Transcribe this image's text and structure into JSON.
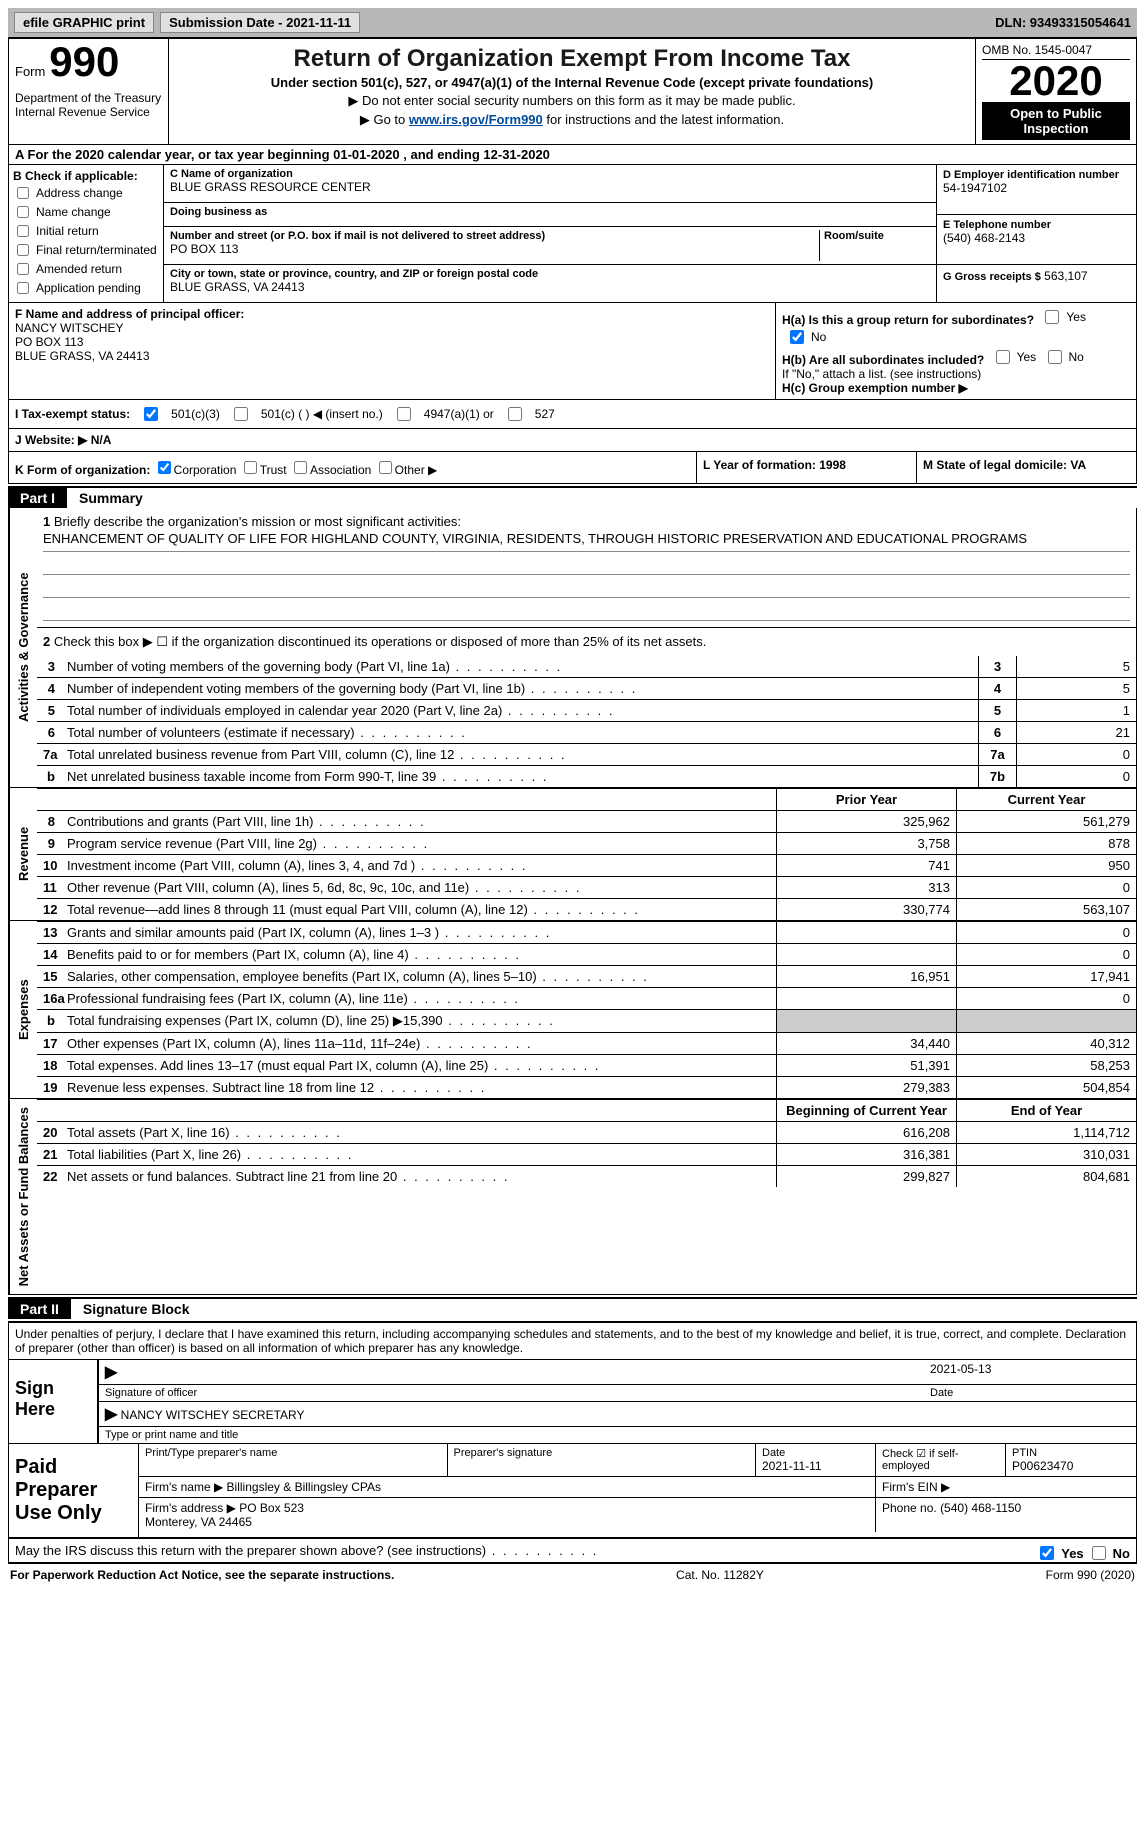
{
  "top": {
    "efile": "efile GRAPHIC print",
    "sub_label": "Submission Date - 2021-11-11",
    "dln": "DLN: 93493315054641"
  },
  "header": {
    "form_word": "Form",
    "form_num": "990",
    "dept": "Department of the Treasury\nInternal Revenue Service",
    "title": "Return of Organization Exempt From Income Tax",
    "subtitle": "Under section 501(c), 527, or 4947(a)(1) of the Internal Revenue Code (except private foundations)",
    "note1": "▶ Do not enter social security numbers on this form as it may be made public.",
    "note2_pre": "▶ Go to ",
    "note2_link": "www.irs.gov/Form990",
    "note2_post": " for instructions and the latest information.",
    "omb": "OMB No. 1545-0047",
    "year": "2020",
    "open": "Open to Public Inspection"
  },
  "rowA": "A For the 2020 calendar year, or tax year beginning 01-01-2020   , and ending 12-31-2020",
  "colB": {
    "hd": "B Check if applicable:",
    "o1": "Address change",
    "o2": "Name change",
    "o3": "Initial return",
    "o4": "Final return/terminated",
    "o5": "Amended return",
    "o6": "Application pending"
  },
  "colC": {
    "name_lbl": "C Name of organization",
    "name": "BLUE GRASS RESOURCE CENTER",
    "dba_lbl": "Doing business as",
    "dba": "",
    "addr_lbl": "Number and street (or P.O. box if mail is not delivered to street address)",
    "addr": "PO BOX 113",
    "room_lbl": "Room/suite",
    "room": "",
    "city_lbl": "City or town, state or province, country, and ZIP or foreign postal code",
    "city": "BLUE GRASS, VA  24413"
  },
  "colD": {
    "ein_lbl": "D Employer identification number",
    "ein": "54-1947102",
    "tel_lbl": "E Telephone number",
    "tel": "(540) 468-2143",
    "gross_lbl": "G Gross receipts $",
    "gross": "563,107"
  },
  "rowF": {
    "lbl": "F Name and address of principal officer:",
    "name": "NANCY WITSCHEY",
    "addr1": "PO BOX 113",
    "addr2": "BLUE GRASS, VA  24413"
  },
  "rowH": {
    "ha": "H(a)  Is this a group return for subordinates?",
    "hb": "H(b)  Are all subordinates included?",
    "hb_instr": "If \"No,\" attach a list. (see instructions)",
    "hc": "H(c)  Group exemption number ▶",
    "yes": "Yes",
    "no": "No"
  },
  "rowI": {
    "lbl": "I  Tax-exempt status:",
    "o1": "501(c)(3)",
    "o2": "501(c) (   ) ◀ (insert no.)",
    "o3": "4947(a)(1) or",
    "o4": "527"
  },
  "rowJ": "J  Website: ▶  N/A",
  "rowK": {
    "lbl": "K Form of organization:",
    "o1": "Corporation",
    "o2": "Trust",
    "o3": "Association",
    "o4": "Other ▶"
  },
  "rowL": "L Year of formation: 1998",
  "rowM": "M State of legal domicile: VA",
  "partI": {
    "badge": "Part I",
    "title": "Summary"
  },
  "summary": {
    "q1_lbl": "Briefly describe the organization's mission or most significant activities:",
    "q1_val": "ENHANCEMENT OF QUALITY OF LIFE FOR HIGHLAND COUNTY, VIRGINIA, RESIDENTS, THROUGH HISTORIC PRESERVATION AND EDUCATIONAL PROGRAMS",
    "q2": "Check this box ▶ ☐  if the organization discontinued its operations or disposed of more than 25% of its net assets.",
    "vlabel_ag": "Activities & Governance",
    "l3": "Number of voting members of the governing body (Part VI, line 1a)",
    "l3v": "5",
    "l4": "Number of independent voting members of the governing body (Part VI, line 1b)",
    "l4v": "5",
    "l5": "Total number of individuals employed in calendar year 2020 (Part V, line 2a)",
    "l5v": "1",
    "l6": "Total number of volunteers (estimate if necessary)",
    "l6v": "21",
    "l7a": "Total unrelated business revenue from Part VIII, column (C), line 12",
    "l7av": "0",
    "l7b": "Net unrelated business taxable income from Form 990-T, line 39",
    "l7bv": "0"
  },
  "fin": {
    "prior_hdr": "Prior Year",
    "curr_hdr": "Current Year",
    "boc_hdr": "Beginning of Current Year",
    "eoy_hdr": "End of Year",
    "vlabel_rev": "Revenue",
    "vlabel_exp": "Expenses",
    "vlabel_nafb": "Net Assets or Fund Balances",
    "rows": [
      {
        "n": "8",
        "t": "Contributions and grants (Part VIII, line 1h)",
        "p": "325,962",
        "c": "561,279"
      },
      {
        "n": "9",
        "t": "Program service revenue (Part VIII, line 2g)",
        "p": "3,758",
        "c": "878"
      },
      {
        "n": "10",
        "t": "Investment income (Part VIII, column (A), lines 3, 4, and 7d )",
        "p": "741",
        "c": "950"
      },
      {
        "n": "11",
        "t": "Other revenue (Part VIII, column (A), lines 5, 6d, 8c, 9c, 10c, and 11e)",
        "p": "313",
        "c": "0"
      },
      {
        "n": "12",
        "t": "Total revenue—add lines 8 through 11 (must equal Part VIII, column (A), line 12)",
        "p": "330,774",
        "c": "563,107"
      }
    ],
    "exp": [
      {
        "n": "13",
        "t": "Grants and similar amounts paid (Part IX, column (A), lines 1–3 )",
        "p": "",
        "c": "0"
      },
      {
        "n": "14",
        "t": "Benefits paid to or for members (Part IX, column (A), line 4)",
        "p": "",
        "c": "0"
      },
      {
        "n": "15",
        "t": "Salaries, other compensation, employee benefits (Part IX, column (A), lines 5–10)",
        "p": "16,951",
        "c": "17,941"
      },
      {
        "n": "16a",
        "t": "Professional fundraising fees (Part IX, column (A), line 11e)",
        "p": "",
        "c": "0"
      },
      {
        "n": "b",
        "t": "Total fundraising expenses (Part IX, column (D), line 25) ▶15,390",
        "p": "GREY",
        "c": "GREY"
      },
      {
        "n": "17",
        "t": "Other expenses (Part IX, column (A), lines 11a–11d, 11f–24e)",
        "p": "34,440",
        "c": "40,312"
      },
      {
        "n": "18",
        "t": "Total expenses. Add lines 13–17 (must equal Part IX, column (A), line 25)",
        "p": "51,391",
        "c": "58,253"
      },
      {
        "n": "19",
        "t": "Revenue less expenses. Subtract line 18 from line 12",
        "p": "279,383",
        "c": "504,854"
      }
    ],
    "na": [
      {
        "n": "20",
        "t": "Total assets (Part X, line 16)",
        "p": "616,208",
        "c": "1,114,712"
      },
      {
        "n": "21",
        "t": "Total liabilities (Part X, line 26)",
        "p": "316,381",
        "c": "310,031"
      },
      {
        "n": "22",
        "t": "Net assets or fund balances. Subtract line 21 from line 20",
        "p": "299,827",
        "c": "804,681"
      }
    ]
  },
  "partII": {
    "badge": "Part II",
    "title": "Signature Block"
  },
  "sig": {
    "intro": "Under penalties of perjury, I declare that I have examined this return, including accompanying schedules and statements, and to the best of my knowledge and belief, it is true, correct, and complete. Declaration of preparer (other than officer) is based on all information of which preparer has any knowledge.",
    "sign_here": "Sign Here",
    "sig_of_officer": "Signature of officer",
    "sig_date": "2021-05-13",
    "date_lbl": "Date",
    "officer_name": "NANCY WITSCHEY  SECRETARY",
    "type_name": "Type or print name and title"
  },
  "prep": {
    "lab": "Paid Preparer Use Only",
    "h1": "Print/Type preparer's name",
    "h2": "Preparer's signature",
    "h3": "Date",
    "h3v": "2021-11-11",
    "h4": "Check ☑ if self-employed",
    "h5": "PTIN",
    "h5v": "P00623470",
    "firm_name_lbl": "Firm's name    ▶",
    "firm_name": "Billingsley & Billingsley CPAs",
    "firm_ein_lbl": "Firm's EIN ▶",
    "firm_addr_lbl": "Firm's address ▶",
    "firm_addr": "PO Box 523\nMonterey, VA  24465",
    "firm_phone_lbl": "Phone no.",
    "firm_phone": "(540) 468-1150"
  },
  "discuss": "May the IRS discuss this return with the preparer shown above? (see instructions)",
  "footer": {
    "left": "For Paperwork Reduction Act Notice, see the separate instructions.",
    "mid": "Cat. No. 11282Y",
    "right": "Form 990 (2020)"
  }
}
